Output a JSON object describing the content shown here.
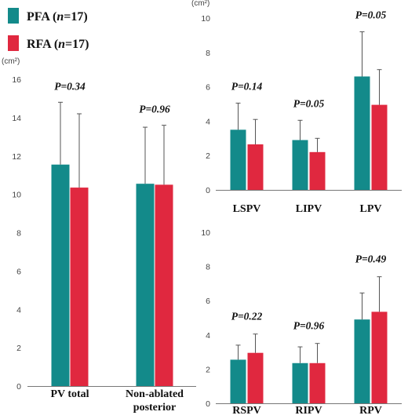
{
  "legend": [
    {
      "label_pre": "PFA (",
      "label_n": "n",
      "label_post": "=17)",
      "color": "#138a8a"
    },
    {
      "label_pre": "RFA (",
      "label_n": "n",
      "label_post": "=17)",
      "color": "#e0283f"
    }
  ],
  "chart_data": [
    {
      "type": "bar",
      "unit_label": "(cm²)",
      "categories": [
        "PV total",
        "Non-ablated posterior"
      ],
      "category_lines": [
        [
          "PV total"
        ],
        [
          "Non-ablated",
          "posterior"
        ]
      ],
      "series": [
        {
          "name": "PFA (n=17)",
          "values": [
            11.55,
            10.55
          ],
          "error": [
            3.25,
            2.95
          ]
        },
        {
          "name": "RFA (n=17)",
          "values": [
            10.35,
            10.5
          ],
          "error": [
            3.85,
            3.1
          ]
        }
      ],
      "p_values": [
        "P=0.34",
        "P=0.96"
      ],
      "ylim": [
        0,
        16
      ],
      "yticks": [
        0,
        2,
        4,
        6,
        8,
        10,
        12,
        14,
        16
      ]
    },
    {
      "type": "bar",
      "unit_label": "(cm²)",
      "categories": [
        "LSPV",
        "LIPV",
        "LPV"
      ],
      "series": [
        {
          "name": "PFA (n=17)",
          "values": [
            3.5,
            2.9,
            6.6
          ],
          "error": [
            1.55,
            1.15,
            2.6
          ]
        },
        {
          "name": "RFA (n=17)",
          "values": [
            2.65,
            2.2,
            4.95
          ],
          "error": [
            1.45,
            0.8,
            2.05
          ]
        }
      ],
      "p_values": [
        "P=0.14",
        "P=0.05",
        "P=0.05"
      ],
      "ylim": [
        0,
        10
      ],
      "yticks": [
        0,
        2,
        4,
        6,
        8,
        10
      ]
    },
    {
      "type": "bar",
      "unit_label": "",
      "categories": [
        "RSPV",
        "RIPV",
        "RPV"
      ],
      "series": [
        {
          "name": "PFA (n=17)",
          "values": [
            2.55,
            2.35,
            4.9
          ],
          "error": [
            0.85,
            0.95,
            1.55
          ]
        },
        {
          "name": "RFA (n=17)",
          "values": [
            2.95,
            2.35,
            5.35
          ],
          "error": [
            1.1,
            1.15,
            2.05
          ]
        }
      ],
      "p_values": [
        "P=0.22",
        "P=0.96",
        "P=0.49"
      ],
      "ylim": [
        0,
        10
      ],
      "yticks": [
        0,
        2,
        4,
        6,
        8,
        10
      ]
    }
  ]
}
